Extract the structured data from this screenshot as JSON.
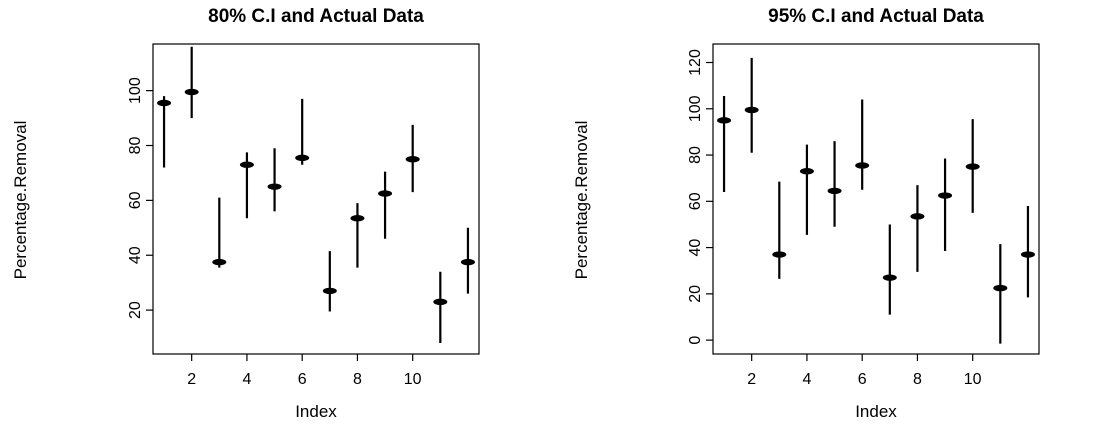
{
  "chart_data": [
    {
      "type": "scatter",
      "title": "80% C.I and Actual Data",
      "xlabel": "Index",
      "ylabel": "Percentage.Removal",
      "x_ticks": [
        "2",
        "4",
        "6",
        "8",
        "10"
      ],
      "y_ticks": [
        "20",
        "40",
        "60",
        "80",
        "100"
      ],
      "xlim": [
        0.6,
        12.4
      ],
      "ylim": [
        4,
        117
      ],
      "x": [
        1,
        2,
        3,
        4,
        5,
        6,
        7,
        8,
        9,
        10,
        11,
        12
      ],
      "values": [
        95.5,
        99.5,
        37.5,
        73,
        65,
        75.5,
        27,
        53.5,
        62.5,
        75,
        23,
        37.5
      ],
      "lower": [
        72,
        90,
        35.5,
        53.5,
        56,
        73,
        19.5,
        35.5,
        46,
        63,
        8,
        26
      ],
      "upper": [
        98,
        116,
        61,
        77.5,
        79,
        97,
        41.5,
        59,
        70.5,
        87.5,
        34,
        50
      ]
    },
    {
      "type": "scatter",
      "title": "95% C.I and Actual Data",
      "xlabel": "Index",
      "ylabel": "Percentage.Removal",
      "x_ticks": [
        "2",
        "4",
        "6",
        "8",
        "10"
      ],
      "y_ticks": [
        "0",
        "20",
        "40",
        "60",
        "80",
        "100",
        "120"
      ],
      "xlim": [
        0.6,
        12.4
      ],
      "ylim": [
        -6,
        128
      ],
      "x": [
        1,
        2,
        3,
        4,
        5,
        6,
        7,
        8,
        9,
        10,
        11,
        12
      ],
      "values": [
        95,
        99.5,
        37,
        73,
        64.5,
        75.5,
        27,
        53.5,
        62.5,
        75,
        22.5,
        37
      ],
      "lower": [
        64,
        81,
        26.5,
        45.5,
        49,
        65,
        11,
        29.5,
        38.5,
        55,
        -1.5,
        18.5
      ],
      "upper": [
        105.5,
        122,
        68.5,
        84.5,
        86,
        104,
        50,
        67,
        78.5,
        95.5,
        41.5,
        58
      ]
    }
  ]
}
